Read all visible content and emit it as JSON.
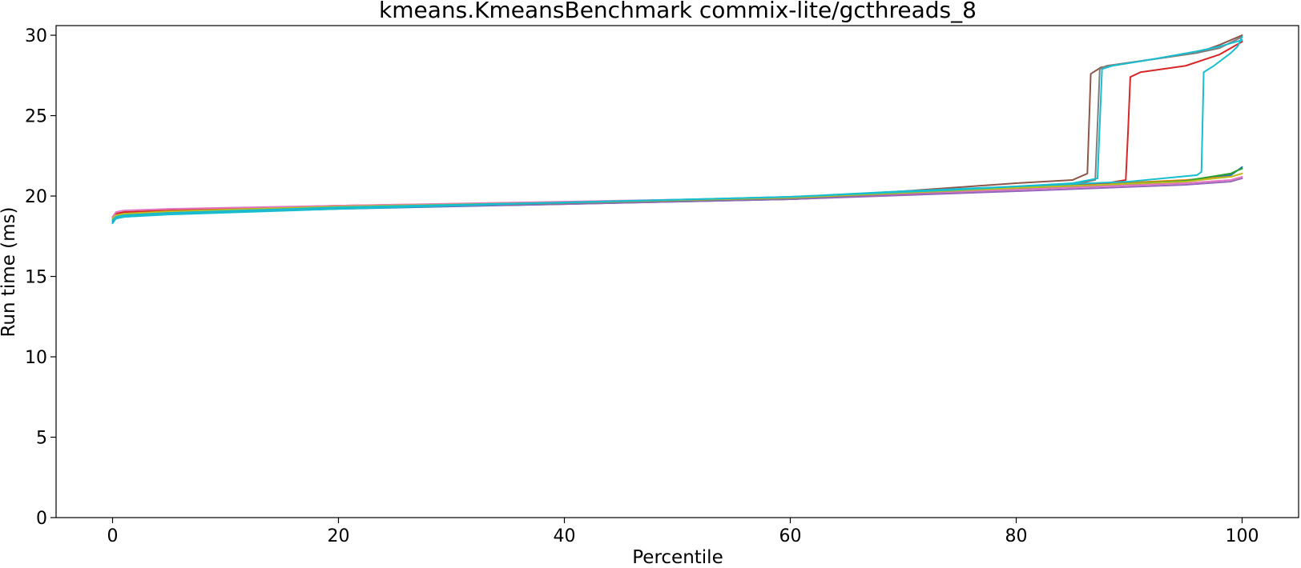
{
  "chart_data": {
    "type": "line",
    "title": "kmeans.KmeansBenchmark commix-lite/gcthreads_8",
    "xlabel": "Percentile",
    "ylabel": "Run time (ms)",
    "xlim": [
      -5,
      105
    ],
    "ylim": [
      0,
      30.6
    ],
    "xticks": [
      0,
      20,
      40,
      60,
      80,
      100
    ],
    "yticks": [
      0,
      5,
      10,
      15,
      20,
      25,
      30
    ],
    "grid": false,
    "legend": "none",
    "series": [
      {
        "color": "#1f77b4",
        "points": [
          [
            0,
            18.4
          ],
          [
            0.3,
            18.6
          ],
          [
            1,
            18.7
          ],
          [
            5,
            18.9
          ],
          [
            20,
            19.2
          ],
          [
            40,
            19.5
          ],
          [
            60,
            19.8
          ],
          [
            80,
            20.4
          ],
          [
            95,
            20.9
          ],
          [
            99,
            21.3
          ],
          [
            99.6,
            21.6
          ],
          [
            100,
            21.8
          ]
        ]
      },
      {
        "color": "#ff7f0e",
        "points": [
          [
            0,
            18.6
          ],
          [
            0.3,
            18.9
          ],
          [
            1,
            19.0
          ],
          [
            5,
            19.1
          ],
          [
            20,
            19.4
          ],
          [
            40,
            19.6
          ],
          [
            60,
            19.9
          ],
          [
            80,
            20.5
          ],
          [
            95,
            21.0
          ],
          [
            99,
            21.2
          ],
          [
            100,
            21.4
          ]
        ]
      },
      {
        "color": "#2ca02c",
        "points": [
          [
            0,
            18.5
          ],
          [
            0.3,
            18.7
          ],
          [
            1,
            18.8
          ],
          [
            5,
            18.95
          ],
          [
            20,
            19.3
          ],
          [
            40,
            19.55
          ],
          [
            60,
            19.85
          ],
          [
            80,
            20.45
          ],
          [
            95,
            20.95
          ],
          [
            99,
            21.4
          ],
          [
            99.6,
            21.6
          ],
          [
            100,
            21.7
          ]
        ]
      },
      {
        "color": "#d62728",
        "points": [
          [
            0,
            18.7
          ],
          [
            0.3,
            18.9
          ],
          [
            1,
            19.0
          ],
          [
            5,
            19.1
          ],
          [
            20,
            19.4
          ],
          [
            40,
            19.6
          ],
          [
            60,
            19.8
          ],
          [
            70,
            20.1
          ],
          [
            80,
            20.55
          ],
          [
            88,
            20.8
          ],
          [
            89.7,
            21.0
          ],
          [
            89.9,
            24.0
          ],
          [
            90.1,
            27.4
          ],
          [
            91,
            27.7
          ],
          [
            95,
            28.1
          ],
          [
            98,
            28.8
          ],
          [
            100,
            29.6
          ]
        ]
      },
      {
        "color": "#9467bd",
        "points": [
          [
            0,
            18.5
          ],
          [
            0.3,
            18.7
          ],
          [
            1,
            18.8
          ],
          [
            5,
            18.95
          ],
          [
            20,
            19.25
          ],
          [
            40,
            19.5
          ],
          [
            60,
            19.8
          ],
          [
            80,
            20.3
          ],
          [
            95,
            20.7
          ],
          [
            99,
            20.9
          ],
          [
            100,
            21.1
          ]
        ]
      },
      {
        "color": "#8c564b",
        "points": [
          [
            0,
            18.6
          ],
          [
            0.3,
            18.8
          ],
          [
            1,
            18.9
          ],
          [
            5,
            19.0
          ],
          [
            20,
            19.3
          ],
          [
            40,
            19.55
          ],
          [
            60,
            19.9
          ],
          [
            70,
            20.3
          ],
          [
            80,
            20.8
          ],
          [
            85,
            21.0
          ],
          [
            86.3,
            21.4
          ],
          [
            86.6,
            27.6
          ],
          [
            87.5,
            28.0
          ],
          [
            92,
            28.5
          ],
          [
            96,
            28.9
          ],
          [
            98,
            29.4
          ],
          [
            100,
            30.0
          ]
        ]
      },
      {
        "color": "#e377c2",
        "points": [
          [
            0,
            18.7
          ],
          [
            0.3,
            19.0
          ],
          [
            1,
            19.1
          ],
          [
            5,
            19.2
          ],
          [
            20,
            19.4
          ],
          [
            40,
            19.65
          ],
          [
            60,
            19.9
          ],
          [
            80,
            20.4
          ],
          [
            95,
            20.8
          ],
          [
            99,
            21.0
          ],
          [
            100,
            21.2
          ]
        ]
      },
      {
        "color": "#7f7f7f",
        "points": [
          [
            0,
            18.6
          ],
          [
            0.3,
            18.8
          ],
          [
            1,
            18.9
          ],
          [
            5,
            19.0
          ],
          [
            20,
            19.3
          ],
          [
            40,
            19.55
          ],
          [
            60,
            19.85
          ],
          [
            80,
            20.5
          ],
          [
            85,
            20.7
          ],
          [
            87,
            21.0
          ],
          [
            87.4,
            27.9
          ],
          [
            88,
            28.1
          ],
          [
            92,
            28.5
          ],
          [
            96,
            28.9
          ],
          [
            98,
            29.2
          ],
          [
            100,
            29.9
          ]
        ]
      },
      {
        "color": "#bcbd22",
        "points": [
          [
            0,
            18.6
          ],
          [
            0.3,
            18.8
          ],
          [
            1,
            18.9
          ],
          [
            5,
            19.05
          ],
          [
            20,
            19.35
          ],
          [
            40,
            19.6
          ],
          [
            60,
            19.9
          ],
          [
            80,
            20.5
          ],
          [
            95,
            20.9
          ],
          [
            99,
            21.2
          ],
          [
            100,
            21.4
          ]
        ]
      },
      {
        "color": "#17becf",
        "points": [
          [
            0,
            18.3
          ],
          [
            0.3,
            18.6
          ],
          [
            1,
            18.7
          ],
          [
            5,
            18.85
          ],
          [
            20,
            19.2
          ],
          [
            40,
            19.6
          ],
          [
            60,
            19.95
          ],
          [
            70,
            20.3
          ],
          [
            80,
            20.6
          ],
          [
            90,
            20.9
          ],
          [
            96,
            21.3
          ],
          [
            96.4,
            21.5
          ],
          [
            96.6,
            27.7
          ],
          [
            97.5,
            28.1
          ],
          [
            99,
            28.9
          ],
          [
            99.6,
            29.3
          ],
          [
            100,
            29.9
          ]
        ]
      },
      {
        "color": "#17becf",
        "points": [
          [
            0,
            18.5
          ],
          [
            0.3,
            18.7
          ],
          [
            1,
            18.8
          ],
          [
            5,
            18.95
          ],
          [
            20,
            19.3
          ],
          [
            40,
            19.6
          ],
          [
            60,
            19.95
          ],
          [
            75,
            20.4
          ],
          [
            85,
            20.8
          ],
          [
            87.2,
            21.1
          ],
          [
            87.6,
            27.9
          ],
          [
            88.5,
            28.1
          ],
          [
            92,
            28.5
          ],
          [
            96,
            29.0
          ],
          [
            98,
            29.3
          ],
          [
            100,
            29.7
          ]
        ]
      }
    ]
  }
}
